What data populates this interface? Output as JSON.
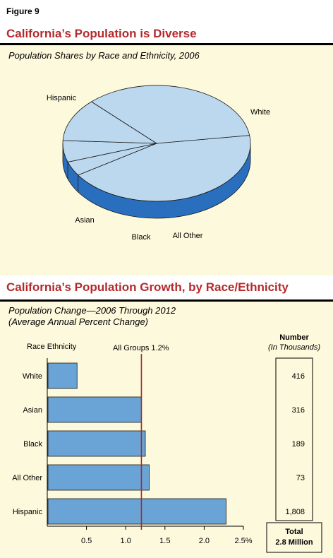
{
  "figure_label": "Figure 9",
  "section1": {
    "title": "California’s Population is Diverse",
    "subtitle": "Population Shares by Race and Ethnicity, 2006"
  },
  "section2": {
    "title": "California’s Population Growth, by Race/Ethnicity",
    "subtitle_line1": "Population Change—2006 Through 2012",
    "subtitle_line2": "(Average Annual Percent Change)",
    "category_header": "Race Ethnicity",
    "reference_label": "All Groups 1.2%",
    "number_header_line1": "Number",
    "number_header_line2": "(In Thousands)",
    "total_line1": "Total",
    "total_line2": "2.8 Million"
  },
  "colors": {
    "pie_top": "#bcd8ee",
    "pie_side": "#2a6fbe",
    "bar_fill": "#6aa3d6",
    "reference_line": "#a62a2a",
    "title": "#b5292d",
    "background": "#fdf9dc"
  },
  "chart_data": [
    {
      "type": "pie",
      "categories": [
        "White",
        "All Other",
        "Black",
        "Asian",
        "Hispanic"
      ],
      "values": [
        43.0,
        4.0,
        6.0,
        12.0,
        35.0
      ],
      "title": "Population Shares by Race and Ethnicity, 2006"
    },
    {
      "type": "bar",
      "orientation": "horizontal",
      "categories": [
        "White",
        "Asian",
        "Black",
        "All Other",
        "Hispanic"
      ],
      "values": [
        0.38,
        1.2,
        1.25,
        1.3,
        2.28
      ],
      "number_thousands": [
        "416",
        "316",
        "189",
        "73",
        "1,808"
      ],
      "xlim": [
        0,
        2.5
      ],
      "xticks": [
        "0.5",
        "1.0",
        "1.5",
        "2.0",
        "2.5%"
      ],
      "xtick_values": [
        0.5,
        1.0,
        1.5,
        2.0,
        2.5
      ],
      "reference_value": 1.2,
      "title": "Population Change—2006 Through 2012"
    }
  ]
}
